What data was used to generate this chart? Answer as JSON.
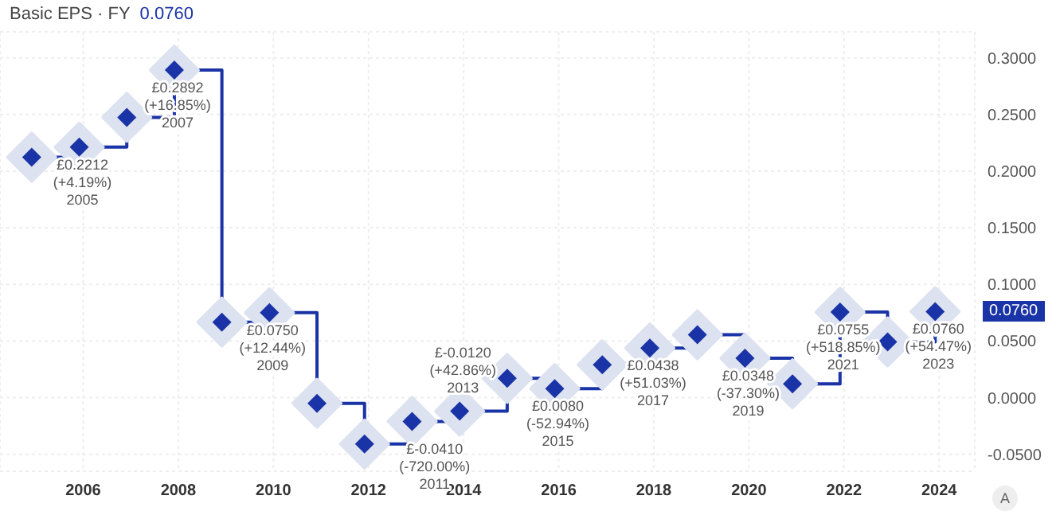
{
  "chart_data": {
    "type": "step",
    "title": "Basic EPS · FY",
    "subtitle": "0.0760",
    "x": [
      "2004-12",
      "2005-12",
      "2006-12",
      "2007-12",
      "2008-12",
      "2009-12",
      "2010-12",
      "2011-12",
      "2012-12",
      "2013-12",
      "2014-12",
      "2015-12",
      "2016-12",
      "2017-12",
      "2018-12",
      "2019-12",
      "2020-12",
      "2021-12",
      "2022-12",
      "2023-12"
    ],
    "series": [
      {
        "color": "#1a33a6",
        "values": [
          0.2123,
          0.2212,
          0.2475,
          0.2892,
          0.0667,
          0.075,
          -0.005,
          -0.041,
          -0.021,
          -0.012,
          0.017,
          0.008,
          0.029,
          0.0438,
          0.0555,
          0.0348,
          0.0122,
          0.0755,
          0.0492,
          0.076
        ],
        "value_labels": [
          null,
          "£0.2212 (+4.19%) 2005",
          null,
          "£0.2892 (+16.85%) 2007",
          null,
          "£0.0750 (+12.44%) 2009",
          null,
          "£-0.0410 (-720.00%) 2011",
          null,
          "£-0.0120 (+42.86%) 2013",
          null,
          "£0.0080 (-52.94%) 2015",
          null,
          "£0.0438 (+51.03%) 2017",
          null,
          "£0.0348 (-37.30%) 2019",
          null,
          "£0.0755 (+518.85%) 2021",
          null,
          "£0.0760 (+54.47%) 2023"
        ]
      }
    ],
    "xlim": [
      "2004-04",
      "2024-10"
    ],
    "xticks": [
      "2006",
      "2008",
      "2010",
      "2012",
      "2014",
      "2016",
      "2018",
      "2020",
      "2022",
      "2024"
    ],
    "ylim": [
      -0.065,
      0.323
    ],
    "yticks": [
      "0.3000",
      "0.2500",
      "0.2000",
      "0.1500",
      "0.1000",
      "0.0500",
      "0.0000",
      "-0.0500"
    ],
    "grid": true,
    "marker": "diamond",
    "line_style": "solid",
    "annotations": [
      "0.0760",
      "A"
    ]
  }
}
